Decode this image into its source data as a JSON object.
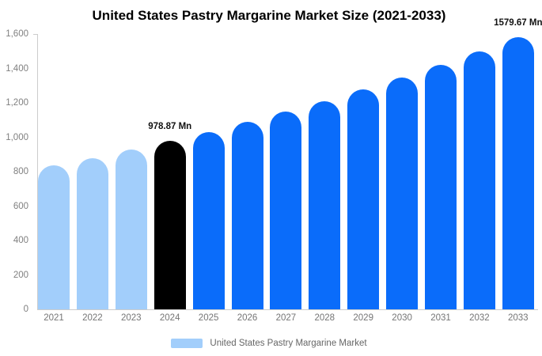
{
  "title": "United States Pastry Margarine Market Size (2021-2033)",
  "chart_data": {
    "type": "bar",
    "title": "United States Pastry Margarine Market Size (2021-2033)",
    "xlabel": "",
    "ylabel": "",
    "unit": "Mn",
    "grid": false,
    "legend_position": "bottom",
    "legend": [
      "United States Pastry Margarine Market"
    ],
    "ylim": [
      0,
      1600
    ],
    "ytick_values": [
      0,
      200,
      400,
      600,
      800,
      1000,
      1200,
      1400,
      1600
    ],
    "ytick_labels": [
      "0",
      "200",
      "400",
      "600",
      "800",
      "1,000",
      "1,200",
      "1,400",
      "1,600"
    ],
    "categories": [
      "2021",
      "2022",
      "2023",
      "2024",
      "2025",
      "2026",
      "2027",
      "2028",
      "2029",
      "2030",
      "2031",
      "2032",
      "2033"
    ],
    "values": [
      835,
      880,
      928,
      978.87,
      1032,
      1089,
      1148,
      1211,
      1277,
      1347,
      1420,
      1498,
      1579.67
    ],
    "bar_colors": [
      "#A2CEFB",
      "#A2CEFB",
      "#A2CEFB",
      "#000000",
      "#0A6CFA",
      "#0A6CFA",
      "#0A6CFA",
      "#0A6CFA",
      "#0A6CFA",
      "#0A6CFA",
      "#0A6CFA",
      "#0A6CFA",
      "#0A6CFA"
    ],
    "annotations": [
      {
        "category": "2024",
        "index": 3,
        "text": "978.87 Mn"
      },
      {
        "category": "2033",
        "index": 12,
        "text": "1579.67 Mn"
      }
    ]
  },
  "colors": {
    "historical_bar": "#A2CEFB",
    "base_year_bar": "#000000",
    "forecast_bar": "#0A6CFA",
    "axis": "#CCCCCC",
    "tick_text": "#808080",
    "annotation_text": "#111111"
  }
}
